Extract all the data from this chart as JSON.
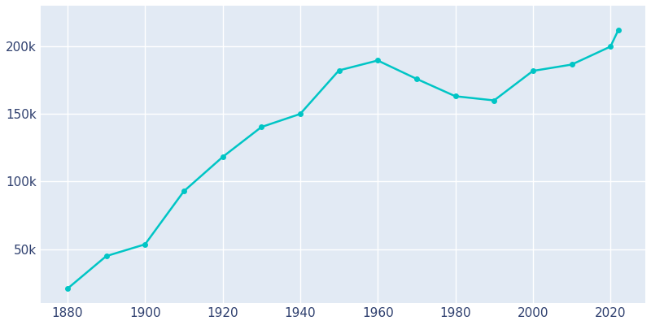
{
  "years": [
    1880,
    1890,
    1900,
    1910,
    1920,
    1930,
    1940,
    1950,
    1960,
    1970,
    1980,
    1990,
    2000,
    2010,
    2020,
    2022
  ],
  "population": [
    20768,
    44843,
    53531,
    92777,
    118110,
    140267,
    149934,
    182121,
    189454,
    175885,
    163034,
    159936,
    181743,
    186440,
    199723,
    211779
  ],
  "line_color": "#00C5C5",
  "marker_color": "#00C5C5",
  "plot_bg_color": "#E2EAF4",
  "fig_bg_color": "#FFFFFF",
  "grid_color": "#FFFFFF",
  "text_color": "#2E3F6E",
  "ylim": [
    10000,
    230000
  ],
  "xlim": [
    1873,
    2029
  ],
  "yticks": [
    50000,
    100000,
    150000,
    200000
  ],
  "xticks": [
    1880,
    1900,
    1920,
    1940,
    1960,
    1980,
    2000,
    2020
  ],
  "figsize": [
    8.0,
    4.0
  ],
  "dpi": 100,
  "line_width": 1.8,
  "marker_size": 4
}
